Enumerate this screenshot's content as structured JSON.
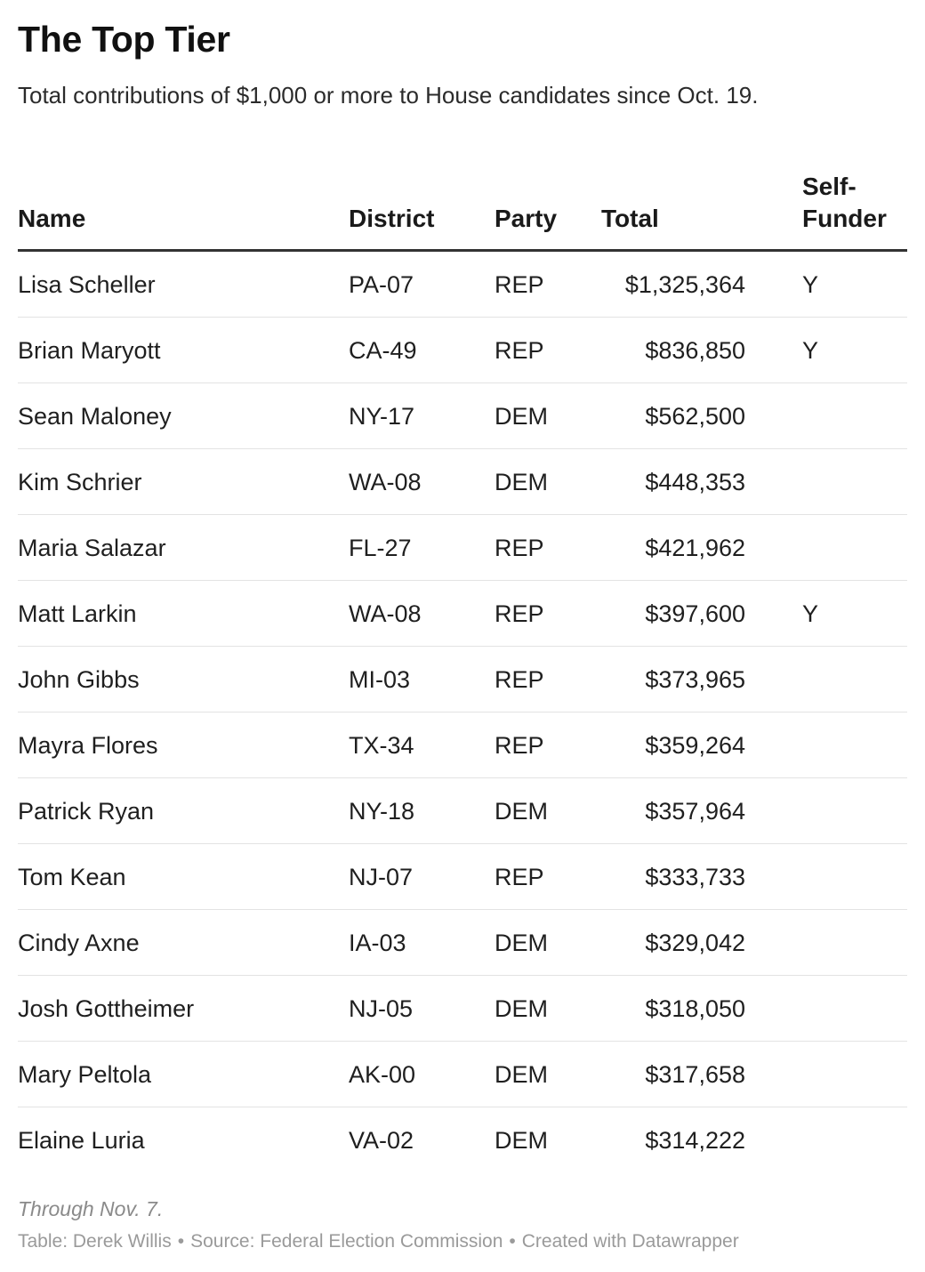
{
  "chart_data": {
    "type": "table",
    "title": "The Top Tier",
    "subtitle": "Total contributions of $1,000 or more to House candidates since Oct. 19.",
    "columns": [
      "Name",
      "District",
      "Party",
      "Total",
      "Self-Funder"
    ],
    "rows": [
      {
        "name": "Lisa Scheller",
        "district": "PA-07",
        "party": "REP",
        "total": "$1,325,364",
        "self_funder": "Y"
      },
      {
        "name": "Brian Maryott",
        "district": "CA-49",
        "party": "REP",
        "total": "$836,850",
        "self_funder": "Y"
      },
      {
        "name": "Sean Maloney",
        "district": "NY-17",
        "party": "DEM",
        "total": "$562,500",
        "self_funder": ""
      },
      {
        "name": "Kim Schrier",
        "district": "WA-08",
        "party": "DEM",
        "total": "$448,353",
        "self_funder": ""
      },
      {
        "name": "Maria Salazar",
        "district": "FL-27",
        "party": "REP",
        "total": "$421,962",
        "self_funder": ""
      },
      {
        "name": "Matt Larkin",
        "district": "WA-08",
        "party": "REP",
        "total": "$397,600",
        "self_funder": "Y"
      },
      {
        "name": "John Gibbs",
        "district": "MI-03",
        "party": "REP",
        "total": "$373,965",
        "self_funder": ""
      },
      {
        "name": "Mayra Flores",
        "district": "TX-34",
        "party": "REP",
        "total": "$359,264",
        "self_funder": ""
      },
      {
        "name": "Patrick Ryan",
        "district": "NY-18",
        "party": "DEM",
        "total": "$357,964",
        "self_funder": ""
      },
      {
        "name": "Tom Kean",
        "district": "NJ-07",
        "party": "REP",
        "total": "$333,733",
        "self_funder": ""
      },
      {
        "name": "Cindy Axne",
        "district": "IA-03",
        "party": "DEM",
        "total": "$329,042",
        "self_funder": ""
      },
      {
        "name": "Josh Gottheimer",
        "district": "NJ-05",
        "party": "DEM",
        "total": "$318,050",
        "self_funder": ""
      },
      {
        "name": "Mary Peltola",
        "district": "AK-00",
        "party": "DEM",
        "total": "$317,658",
        "self_funder": ""
      },
      {
        "name": "Elaine Luria",
        "district": "VA-02",
        "party": "DEM",
        "total": "$314,222",
        "self_funder": ""
      }
    ],
    "note": "Through Nov. 7.",
    "footer": {
      "credit": "Table: Derek Willis",
      "source": "Source: Federal Election Commission",
      "tool": "Created with Datawrapper",
      "separator": "•"
    }
  },
  "colors": {
    "text": "#1a1a1a",
    "header_rule": "#333333",
    "row_rule": "#e3e3e3",
    "muted": "#8a8a8a"
  }
}
